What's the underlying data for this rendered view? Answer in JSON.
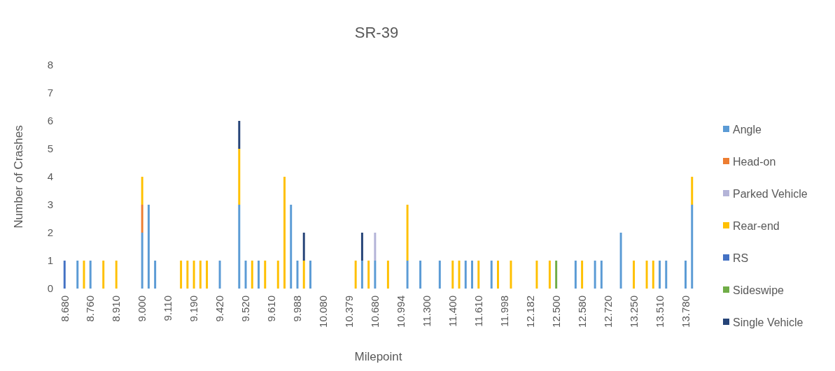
{
  "chart_data": {
    "type": "bar",
    "title": "SR-39",
    "xlabel": "Milepoint",
    "ylabel": "Number of Crashes",
    "stacked": true,
    "grid": false,
    "legend": "right",
    "ylim": [
      0,
      8
    ],
    "yticks": [
      0,
      1,
      2,
      3,
      4,
      5,
      6,
      7,
      8
    ],
    "categories": [
      "8.680",
      null,
      null,
      null,
      "8.760",
      null,
      null,
      null,
      "8.910",
      null,
      null,
      null,
      "9.000",
      null,
      null,
      null,
      "9.110",
      null,
      null,
      null,
      "9.190",
      null,
      null,
      null,
      "9.420",
      null,
      null,
      null,
      "9.520",
      null,
      null,
      null,
      "9.610",
      null,
      null,
      null,
      "9.988",
      null,
      null,
      null,
      "10.080",
      null,
      null,
      null,
      "10.379",
      null,
      null,
      null,
      "10.680",
      null,
      null,
      null,
      "10.994",
      null,
      null,
      null,
      "11.300",
      null,
      null,
      null,
      "11.400",
      null,
      null,
      null,
      "11.610",
      null,
      null,
      null,
      "11.998",
      null,
      null,
      null,
      "12.182",
      null,
      null,
      null,
      "12.500",
      null,
      null,
      null,
      "12.580",
      null,
      null,
      null,
      "12.720",
      null,
      null,
      null,
      "13.250",
      null,
      null,
      null,
      "13.510",
      null,
      null,
      null,
      "13.780",
      null
    ],
    "series": [
      {
        "name": "Angle",
        "color": "#5b9bd5",
        "values": [
          null,
          null,
          1,
          null,
          1,
          null,
          null,
          null,
          null,
          null,
          null,
          null,
          2,
          3,
          1,
          null,
          null,
          null,
          null,
          null,
          null,
          null,
          null,
          null,
          1,
          null,
          null,
          3,
          1,
          null,
          1,
          null,
          null,
          null,
          null,
          3,
          1,
          null,
          1,
          null,
          null,
          null,
          null,
          null,
          null,
          null,
          1,
          null,
          1,
          null,
          null,
          null,
          null,
          1,
          null,
          1,
          null,
          null,
          1,
          null,
          null,
          null,
          1,
          1,
          null,
          null,
          1,
          null,
          null,
          null,
          null,
          null,
          null,
          null,
          null,
          null,
          null,
          null,
          null,
          1,
          null,
          null,
          1,
          1,
          null,
          null,
          2,
          null,
          null,
          null,
          null,
          null,
          1,
          1,
          null,
          null,
          1,
          3
        ]
      },
      {
        "name": "Head-on",
        "color": "#ed7d31",
        "values": [
          null,
          null,
          null,
          null,
          null,
          null,
          null,
          null,
          null,
          null,
          null,
          null,
          1,
          null,
          null,
          null,
          null,
          null,
          null,
          null,
          null,
          null,
          null,
          null,
          null,
          null,
          null,
          null,
          null,
          null,
          null,
          null,
          null,
          null,
          null,
          null,
          null,
          null,
          null,
          null,
          null,
          null,
          null,
          null,
          null,
          null,
          null,
          null,
          null,
          null,
          null,
          null,
          null,
          null,
          null,
          null,
          null,
          null,
          null,
          null,
          null,
          null,
          null,
          null,
          null,
          null,
          null,
          null,
          null,
          null,
          null,
          null,
          null,
          null,
          null,
          null,
          null,
          null,
          null,
          null,
          null,
          null,
          null,
          null,
          null,
          null,
          null,
          null,
          null,
          null,
          null,
          null,
          null,
          null,
          null,
          null,
          null,
          null
        ]
      },
      {
        "name": "Parked Vehicle",
        "color": "#b4b4d8",
        "values": [
          null,
          null,
          null,
          null,
          null,
          null,
          null,
          null,
          null,
          null,
          null,
          null,
          null,
          null,
          null,
          null,
          null,
          null,
          null,
          null,
          null,
          null,
          null,
          null,
          null,
          null,
          null,
          null,
          null,
          null,
          null,
          null,
          null,
          null,
          null,
          null,
          null,
          null,
          null,
          null,
          null,
          null,
          null,
          null,
          null,
          null,
          null,
          null,
          1,
          null,
          null,
          null,
          null,
          null,
          null,
          null,
          null,
          null,
          null,
          null,
          null,
          null,
          null,
          null,
          null,
          null,
          null,
          null,
          null,
          null,
          null,
          null,
          null,
          null,
          null,
          null,
          null,
          null,
          null,
          null,
          null,
          null,
          null,
          null,
          null,
          null,
          null,
          null,
          null,
          null,
          null,
          null,
          null,
          null,
          null,
          null,
          null,
          null
        ]
      },
      {
        "name": "Rear-end",
        "color": "#ffc000",
        "values": [
          null,
          null,
          null,
          1,
          null,
          null,
          1,
          null,
          1,
          null,
          null,
          null,
          1,
          null,
          null,
          null,
          null,
          null,
          1,
          1,
          1,
          1,
          1,
          null,
          null,
          null,
          null,
          2,
          null,
          1,
          null,
          1,
          null,
          1,
          4,
          null,
          null,
          1,
          null,
          null,
          null,
          null,
          null,
          null,
          null,
          1,
          null,
          1,
          null,
          null,
          1,
          null,
          null,
          2,
          null,
          null,
          null,
          null,
          null,
          null,
          1,
          1,
          null,
          null,
          1,
          null,
          null,
          1,
          null,
          1,
          null,
          null,
          null,
          1,
          null,
          1,
          null,
          null,
          null,
          null,
          1,
          null,
          null,
          null,
          null,
          null,
          null,
          null,
          1,
          null,
          1,
          1,
          null,
          null,
          null,
          null,
          null,
          1
        ]
      },
      {
        "name": "RS",
        "color": "#4472c4",
        "values": [
          1,
          null,
          null,
          null,
          null,
          null,
          null,
          null,
          null,
          null,
          null,
          null,
          null,
          null,
          null,
          null,
          null,
          null,
          null,
          null,
          null,
          null,
          null,
          null,
          null,
          null,
          null,
          null,
          null,
          null,
          null,
          null,
          null,
          null,
          null,
          null,
          null,
          null,
          null,
          null,
          null,
          null,
          null,
          null,
          null,
          null,
          null,
          null,
          null,
          null,
          null,
          null,
          null,
          null,
          null,
          null,
          null,
          null,
          null,
          null,
          null,
          null,
          null,
          null,
          null,
          null,
          null,
          null,
          null,
          null,
          null,
          null,
          null,
          null,
          null,
          null,
          null,
          null,
          null,
          null,
          null,
          null,
          null,
          null,
          null,
          null,
          null,
          null,
          null,
          null,
          null,
          null,
          null,
          null,
          null,
          null,
          null,
          null
        ]
      },
      {
        "name": "Sideswipe",
        "color": "#70ad47",
        "values": [
          null,
          null,
          null,
          null,
          null,
          null,
          null,
          null,
          null,
          null,
          null,
          null,
          null,
          null,
          null,
          null,
          null,
          null,
          null,
          null,
          null,
          null,
          null,
          null,
          null,
          null,
          null,
          null,
          null,
          null,
          null,
          null,
          null,
          null,
          null,
          null,
          null,
          null,
          null,
          null,
          null,
          null,
          null,
          null,
          null,
          null,
          null,
          null,
          null,
          null,
          null,
          null,
          null,
          null,
          null,
          null,
          null,
          null,
          null,
          null,
          null,
          null,
          null,
          null,
          null,
          null,
          null,
          null,
          null,
          null,
          null,
          null,
          null,
          null,
          null,
          null,
          1,
          null,
          null,
          null,
          null,
          null,
          null,
          null,
          null,
          null,
          null,
          null,
          null,
          null,
          null,
          null,
          null,
          null,
          null,
          null,
          null,
          null
        ]
      },
      {
        "name": "Single Vehicle",
        "color": "#264478",
        "values": [
          null,
          null,
          null,
          null,
          null,
          null,
          null,
          null,
          null,
          null,
          null,
          null,
          null,
          null,
          null,
          null,
          null,
          null,
          null,
          null,
          null,
          null,
          null,
          null,
          null,
          null,
          null,
          1,
          null,
          null,
          null,
          null,
          null,
          null,
          null,
          null,
          null,
          1,
          null,
          null,
          null,
          null,
          null,
          null,
          null,
          null,
          1,
          null,
          null,
          null,
          null,
          null,
          null,
          null,
          null,
          null,
          null,
          null,
          null,
          null,
          null,
          null,
          null,
          null,
          null,
          null,
          null,
          null,
          null,
          null,
          null,
          null,
          null,
          null,
          null,
          null,
          null,
          null,
          null,
          null,
          null,
          null,
          null,
          null,
          null,
          null,
          null,
          null,
          null,
          null,
          null,
          null,
          null,
          null,
          null,
          null,
          null,
          null
        ]
      }
    ]
  }
}
